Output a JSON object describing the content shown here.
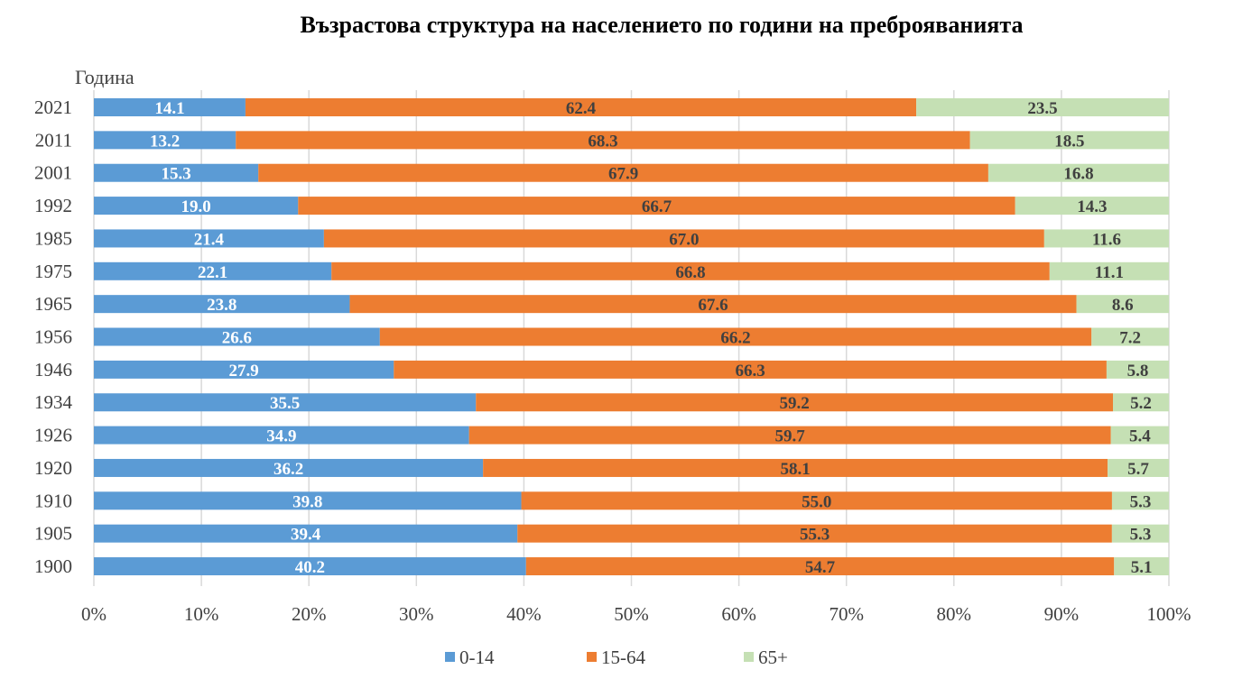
{
  "chart_data": {
    "type": "bar",
    "orientation": "horizontal",
    "stacked": "percent",
    "title": "Възрастова структура на населението по години на преброяванията",
    "ylabel": "Година",
    "xlabel": "",
    "categories": [
      "2021",
      "2011",
      "2001",
      "1992",
      "1985",
      "1975",
      "1965",
      "1956",
      "1946",
      "1934",
      "1926",
      "1920",
      "1910",
      "1905",
      "1900"
    ],
    "series": [
      {
        "name": "0-14",
        "color": "#5b9bd5",
        "label_color": "#ffffff",
        "values": [
          14.1,
          13.2,
          15.3,
          19.0,
          21.4,
          22.1,
          23.8,
          26.6,
          27.9,
          35.5,
          34.9,
          36.2,
          39.8,
          39.4,
          40.2
        ]
      },
      {
        "name": "15-64",
        "color": "#ed7d31",
        "label_color": "#404040",
        "values": [
          62.4,
          68.3,
          67.9,
          66.7,
          67.0,
          66.8,
          67.6,
          66.2,
          66.3,
          59.2,
          59.7,
          58.1,
          55.0,
          55.3,
          54.7
        ]
      },
      {
        "name": "65+",
        "color": "#c5e0b4",
        "label_color": "#404040",
        "values": [
          23.5,
          18.5,
          16.8,
          14.3,
          11.6,
          11.1,
          8.6,
          7.2,
          5.8,
          5.2,
          5.4,
          5.7,
          5.3,
          5.3,
          5.1
        ]
      }
    ],
    "xticks": [
      "0%",
      "10%",
      "20%",
      "30%",
      "40%",
      "50%",
      "60%",
      "70%",
      "80%",
      "90%",
      "100%"
    ],
    "xlim": [
      0,
      100
    ],
    "grid": true,
    "legend": "bottom"
  }
}
